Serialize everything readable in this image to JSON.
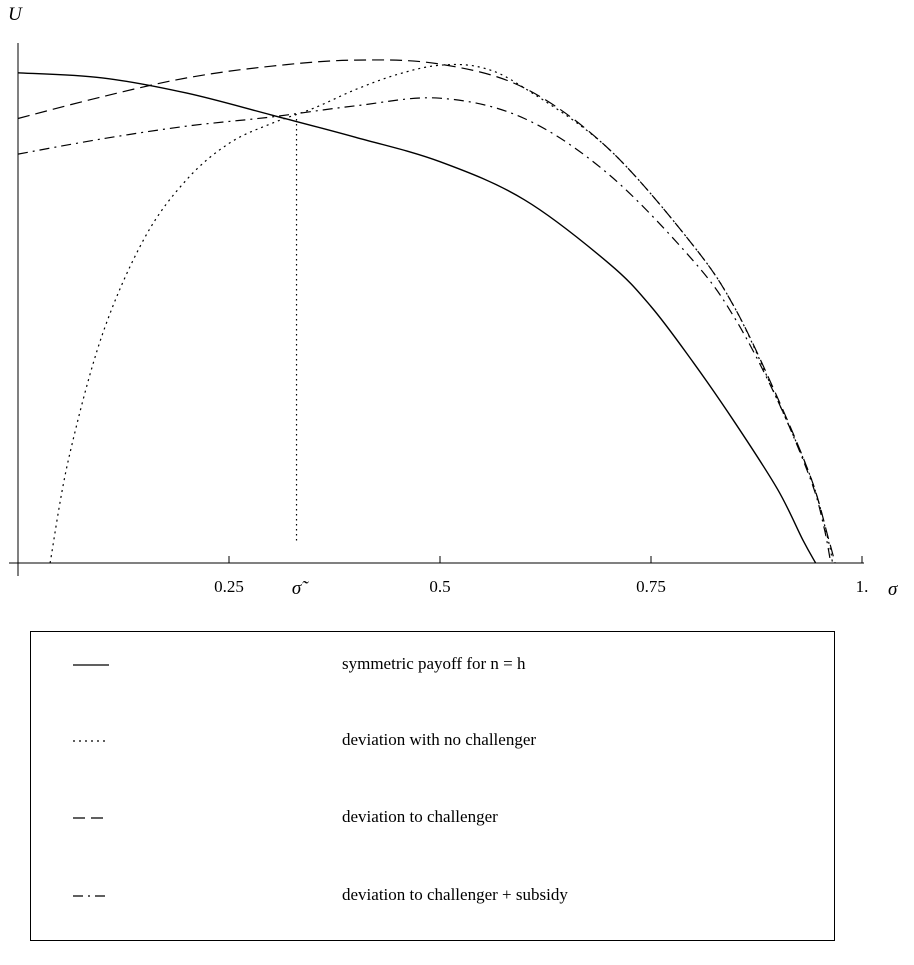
{
  "chart_data": {
    "type": "line",
    "xlabel": "σ",
    "ylabel": "U",
    "xlim": [
      0,
      1
    ],
    "ylim": [
      0,
      1
    ],
    "x_ticks": [
      {
        "value": 0.25,
        "label": "0.25"
      },
      {
        "value": 0.5,
        "label": "0.5"
      },
      {
        "value": 0.75,
        "label": "0.75"
      },
      {
        "value": 1.0,
        "label": "1."
      }
    ],
    "marked_point": {
      "label": "σ̃",
      "x": 0.33,
      "y": 0.874
    },
    "grid": false,
    "series": [
      {
        "name": "symmetric payoff for n = h",
        "dash": "solid",
        "points": [
          [
            0.0,
            0.965
          ],
          [
            0.1,
            0.955
          ],
          [
            0.2,
            0.925
          ],
          [
            0.3,
            0.882
          ],
          [
            0.4,
            0.838
          ],
          [
            0.5,
            0.79
          ],
          [
            0.6,
            0.715
          ],
          [
            0.7,
            0.59
          ],
          [
            0.75,
            0.505
          ],
          [
            0.8,
            0.395
          ],
          [
            0.85,
            0.275
          ],
          [
            0.9,
            0.145
          ],
          [
            0.93,
            0.045
          ],
          [
            0.945,
            0.0
          ]
        ]
      },
      {
        "name": "deviation with no challenger",
        "dash": "dotted",
        "points": [
          [
            0.038,
            0.0
          ],
          [
            0.06,
            0.205
          ],
          [
            0.1,
            0.45
          ],
          [
            0.15,
            0.64
          ],
          [
            0.2,
            0.755
          ],
          [
            0.25,
            0.826
          ],
          [
            0.3,
            0.865
          ],
          [
            0.35,
            0.895
          ],
          [
            0.4,
            0.932
          ],
          [
            0.45,
            0.962
          ],
          [
            0.5,
            0.98
          ],
          [
            0.55,
            0.975
          ],
          [
            0.6,
            0.935
          ],
          [
            0.7,
            0.815
          ],
          [
            0.8,
            0.625
          ],
          [
            0.85,
            0.5
          ],
          [
            0.9,
            0.32
          ],
          [
            0.94,
            0.165
          ],
          [
            0.96,
            0.045
          ],
          [
            0.965,
            0.0
          ]
        ]
      },
      {
        "name": "deviation to challenger",
        "dash": "dashed",
        "points": [
          [
            0.0,
            0.875
          ],
          [
            0.1,
            0.918
          ],
          [
            0.2,
            0.955
          ],
          [
            0.3,
            0.978
          ],
          [
            0.4,
            0.99
          ],
          [
            0.5,
            0.982
          ],
          [
            0.6,
            0.935
          ],
          [
            0.7,
            0.815
          ],
          [
            0.8,
            0.625
          ],
          [
            0.85,
            0.5
          ],
          [
            0.9,
            0.325
          ],
          [
            0.94,
            0.165
          ],
          [
            0.96,
            0.05
          ],
          [
            0.968,
            0.0
          ]
        ]
      },
      {
        "name": "deviation to challenger + subsidy",
        "dash": "dashdot",
        "points": [
          [
            0.0,
            0.805
          ],
          [
            0.1,
            0.835
          ],
          [
            0.2,
            0.86
          ],
          [
            0.3,
            0.878
          ],
          [
            0.4,
            0.9
          ],
          [
            0.5,
            0.915
          ],
          [
            0.6,
            0.875
          ],
          [
            0.7,
            0.765
          ],
          [
            0.8,
            0.595
          ],
          [
            0.85,
            0.48
          ],
          [
            0.9,
            0.32
          ],
          [
            0.94,
            0.16
          ],
          [
            0.955,
            0.07
          ],
          [
            0.963,
            0.0
          ]
        ]
      }
    ],
    "legend_position": "bottom"
  }
}
